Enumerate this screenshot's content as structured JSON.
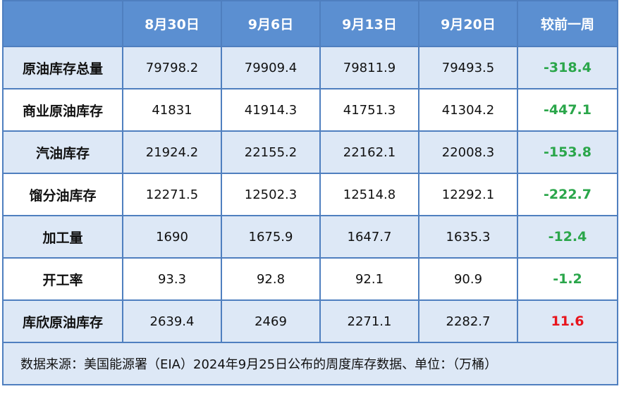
{
  "colors": {
    "header_bg": "#5b8fd1",
    "header_text": "#ffffff",
    "border": "#4f7fbf",
    "row_alt": "#dde8f6",
    "decrease": "#2aa64a",
    "increase": "#e8141c"
  },
  "table": {
    "header": {
      "corner": "",
      "dates": [
        "8月30日",
        "9月6日",
        "9月13日",
        "9月20日"
      ],
      "change": "较前一周"
    },
    "rows": [
      {
        "label": "原油库存总量",
        "values": [
          "79798.2",
          "79909.4",
          "79811.9",
          "79493.5"
        ],
        "change": "-318.4",
        "direction": "down"
      },
      {
        "label": "商业原油库存",
        "values": [
          "41831",
          "41914.3",
          "41751.3",
          "41304.2"
        ],
        "change": "-447.1",
        "direction": "down"
      },
      {
        "label": "汽油库存",
        "values": [
          "21924.2",
          "22155.2",
          "22162.1",
          "22008.3"
        ],
        "change": "-153.8",
        "direction": "down"
      },
      {
        "label": "馏分油库存",
        "values": [
          "12271.5",
          "12502.3",
          "12514.8",
          "12292.1"
        ],
        "change": "-222.7",
        "direction": "down"
      },
      {
        "label": "加工量",
        "values": [
          "1690",
          "1675.9",
          "1647.7",
          "1635.3"
        ],
        "change": "-12.4",
        "direction": "down"
      },
      {
        "label": "开工率",
        "values": [
          "93.3",
          "92.8",
          "92.1",
          "90.9"
        ],
        "change": "-1.2",
        "direction": "down"
      },
      {
        "label": "库欣原油库存",
        "values": [
          "2639.4",
          "2469",
          "2271.1",
          "2282.7"
        ],
        "change": "11.6",
        "direction": "up"
      }
    ],
    "footer": "数据来源：美国能源署（EIA）2024年9月25日公布的周度库存数据、单位：（万桶）"
  }
}
